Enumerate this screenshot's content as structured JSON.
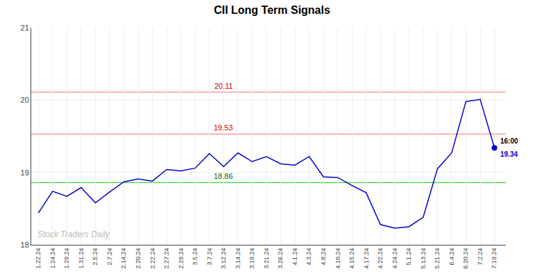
{
  "chart_data": {
    "type": "line",
    "title": "CII Long Term Signals",
    "categories": [
      "1.22.24",
      "1.24.24",
      "1.29.24",
      "1.31.24",
      "2.5.24",
      "2.7.24",
      "2.14.24",
      "2.20.24",
      "2.22.24",
      "2.27.24",
      "2.29.24",
      "3.5.24",
      "3.7.24",
      "3.12.24",
      "3.14.24",
      "3.19.24",
      "3.21.24",
      "3.26.24",
      "4.1.24",
      "4.3.24",
      "4.8.24",
      "4.10.24",
      "4.15.24",
      "4.17.24",
      "4.22.24",
      "4.24.24",
      "5.1.24",
      "5.13.24",
      "5.21.24",
      "6.4.24",
      "6.20.24",
      "7.2.24",
      "7.19.24"
    ],
    "values": [
      18.44,
      18.74,
      18.67,
      18.79,
      18.58,
      18.73,
      18.87,
      18.91,
      18.88,
      19.04,
      19.02,
      19.06,
      19.26,
      19.08,
      19.27,
      19.15,
      19.22,
      19.12,
      19.1,
      19.22,
      18.94,
      18.93,
      18.82,
      18.72,
      18.28,
      18.23,
      18.25,
      18.38,
      19.05,
      19.27,
      19.98,
      20.01,
      19.34
    ],
    "color": "#0000cc",
    "ylim": [
      18,
      21
    ],
    "yticks": [
      18,
      19,
      20,
      21
    ],
    "grid": true,
    "reference_lines": [
      {
        "value": 20.11,
        "label": "20.11",
        "color": "#ff8888",
        "label_color": "#cc0000"
      },
      {
        "value": 19.53,
        "label": "19.53",
        "color": "#ff8888",
        "label_color": "#cc0000"
      },
      {
        "value": 18.86,
        "label": "18.86",
        "color": "#00cc00",
        "label_color": "#006600"
      }
    ],
    "last_point": {
      "time_label": "16:00",
      "value": 19.34,
      "value_label": "19.34"
    },
    "watermark": "Stock Traders Daily"
  }
}
